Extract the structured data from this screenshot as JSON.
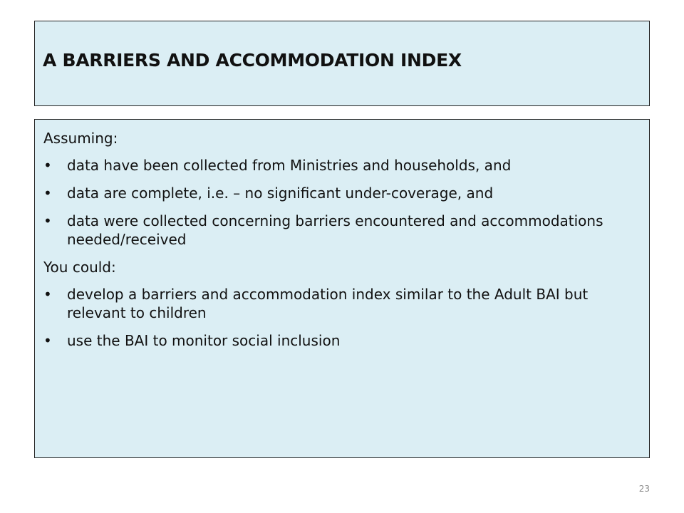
{
  "slide": {
    "title": "A BARRIERS AND ACCOMMODATION INDEX",
    "bullet_glyph": "•",
    "sections": [
      {
        "intro": "Assuming:",
        "bullets": [
          "data have been collected from Ministries and households, and",
          "data are complete, i.e. – no significant under-coverage, and",
          "data were collected concerning barriers encountered and accommodations needed/received"
        ]
      },
      {
        "intro": "You could:",
        "bullets": [
          "develop a barriers and accommodation index similar to the Adult BAI but relevant to children",
          "use the BAI to monitor social inclusion"
        ]
      }
    ],
    "page_number": "23"
  },
  "colors": {
    "box_fill": "#dbeef4",
    "box_border": "#222222",
    "text": "#111111",
    "page_number": "#8a8a8a"
  }
}
